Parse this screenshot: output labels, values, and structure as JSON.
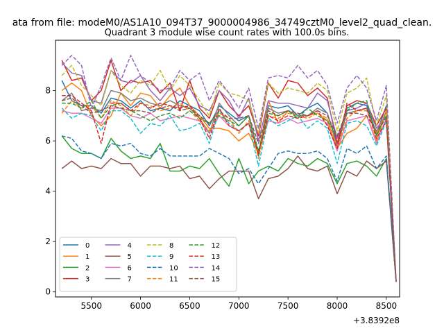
{
  "suptitle": "ata from file: modeM0/AS1A10_094T37_9000004986_34749cztM0_level2_quad_clean.",
  "chart_data": {
    "type": "line",
    "title": "Quadrant 3 module wise count rates with 100.0s bins.",
    "xlabel": "",
    "ylabel": "",
    "x_offset_label": "+3.8392e8",
    "xlim": [
      5135,
      8635
    ],
    "ylim": [
      -0.2,
      10.0
    ],
    "xticks": [
      5500,
      6000,
      6500,
      7000,
      7500,
      8000,
      8500
    ],
    "xtick_labels": [
      "5500",
      "6000",
      "6500",
      "7000",
      "7500",
      "8000",
      "8500"
    ],
    "yticks": [
      0,
      2,
      4,
      6,
      8
    ],
    "ytick_labels": [
      "0",
      "2",
      "4",
      "6",
      "8"
    ],
    "x": [
      5200,
      5300,
      5400,
      5500,
      5600,
      5700,
      5800,
      5900,
      6000,
      6100,
      6200,
      6300,
      6400,
      6500,
      6600,
      6700,
      6800,
      6900,
      7000,
      7100,
      7200,
      7300,
      7400,
      7500,
      7600,
      7700,
      7800,
      7900,
      8000,
      8100,
      8200,
      8300,
      8400,
      8500,
      8600
    ],
    "legend_location": "lower left",
    "series": [
      {
        "name": "0",
        "color": "#1f77b4",
        "dash": "solid",
        "values": [
          8.4,
          7.6,
          7.4,
          7.4,
          7.1,
          7.7,
          7.6,
          7.3,
          7.6,
          7.2,
          7.3,
          7.2,
          7.6,
          7.4,
          7.2,
          6.6,
          7.4,
          7.1,
          6.8,
          7.0,
          5.4,
          7.4,
          7.3,
          7.4,
          7.0,
          7.3,
          7.5,
          7.1,
          5.9,
          7.3,
          7.5,
          7.4,
          6.3,
          7.4,
          0.4
        ]
      },
      {
        "name": "1",
        "color": "#ff7f0e",
        "dash": "solid",
        "values": [
          8.0,
          8.3,
          8.0,
          7.0,
          6.6,
          7.0,
          7.9,
          7.4,
          7.9,
          7.8,
          7.3,
          7.8,
          8.1,
          7.4,
          7.0,
          6.5,
          6.5,
          6.4,
          6.0,
          6.3,
          5.5,
          7.6,
          6.7,
          7.2,
          7.0,
          7.0,
          7.1,
          6.8,
          5.7,
          6.3,
          6.5,
          7.0,
          6.0,
          7.2,
          0.4
        ]
      },
      {
        "name": "2",
        "color": "#2ca02c",
        "dash": "solid",
        "values": [
          6.2,
          5.7,
          5.5,
          5.5,
          5.3,
          6.1,
          5.6,
          5.3,
          5.4,
          5.3,
          5.9,
          4.8,
          4.8,
          5.0,
          4.9,
          5.3,
          4.7,
          4.2,
          5.3,
          4.3,
          4.8,
          5.0,
          4.8,
          5.3,
          5.1,
          5.0,
          5.3,
          5.1,
          4.3,
          5.1,
          5.2,
          5.0,
          4.6,
          5.3,
          0.4
        ]
      },
      {
        "name": "3",
        "color": "#d62728",
        "dash": "solid",
        "values": [
          9.2,
          8.4,
          8.5,
          7.6,
          8.0,
          9.2,
          8.0,
          8.4,
          8.3,
          8.4,
          7.9,
          8.3,
          7.2,
          8.4,
          7.3,
          6.9,
          8.0,
          7.4,
          7.0,
          7.4,
          6.2,
          8.3,
          7.7,
          8.4,
          8.3,
          7.8,
          8.1,
          7.7,
          5.9,
          7.4,
          7.6,
          7.5,
          6.6,
          7.3,
          0.4
        ]
      },
      {
        "name": "4",
        "color": "#9467bd",
        "dash": "solid",
        "values": [
          9.1,
          8.7,
          8.6,
          7.6,
          7.5,
          8.8,
          8.4,
          8.3,
          8.6,
          8.0,
          7.6,
          8.1,
          7.8,
          8.1,
          7.4,
          7.2,
          8.0,
          7.6,
          6.9,
          7.7,
          6.0,
          7.6,
          7.5,
          7.5,
          7.4,
          7.3,
          7.9,
          7.6,
          6.1,
          7.2,
          7.3,
          7.5,
          6.5,
          7.0,
          0.4
        ]
      },
      {
        "name": "5",
        "color": "#8c564b",
        "dash": "solid",
        "values": [
          4.9,
          5.2,
          4.9,
          5.0,
          4.9,
          5.3,
          5.1,
          5.1,
          4.6,
          5.0,
          5.0,
          4.9,
          5.0,
          4.5,
          4.6,
          4.1,
          4.5,
          4.8,
          4.8,
          4.8,
          3.7,
          4.5,
          4.6,
          4.9,
          5.4,
          4.9,
          4.8,
          5.0,
          3.9,
          4.8,
          4.6,
          5.2,
          4.9,
          5.2,
          0.4
        ]
      },
      {
        "name": "6",
        "color": "#e377c2",
        "dash": "solid",
        "values": [
          7.2,
          7.1,
          7.1,
          6.9,
          6.7,
          7.3,
          7.3,
          7.0,
          6.9,
          7.1,
          6.8,
          6.9,
          7.0,
          6.9,
          6.8,
          6.3,
          7.0,
          6.6,
          6.4,
          6.7,
          5.6,
          6.8,
          6.7,
          6.9,
          6.7,
          6.8,
          6.9,
          6.7,
          5.6,
          6.8,
          6.9,
          7.0,
          5.9,
          6.9,
          0.4
        ]
      },
      {
        "name": "7",
        "color": "#7f7f7f",
        "dash": "solid",
        "values": [
          7.6,
          7.9,
          7.2,
          7.3,
          7.2,
          8.0,
          7.9,
          7.6,
          7.7,
          7.5,
          7.4,
          7.6,
          7.4,
          7.3,
          6.9,
          6.3,
          7.5,
          7.0,
          6.6,
          7.0,
          5.5,
          7.3,
          7.1,
          7.2,
          7.0,
          7.0,
          7.3,
          7.1,
          5.8,
          7.1,
          7.2,
          7.3,
          6.2,
          7.2,
          0.4
        ]
      },
      {
        "name": "8",
        "color": "#bcbd22",
        "dash": "dashed",
        "values": [
          8.6,
          9.0,
          8.2,
          7.8,
          7.4,
          8.8,
          8.2,
          7.9,
          8.4,
          8.2,
          8.8,
          8.0,
          8.6,
          8.2,
          7.6,
          7.0,
          8.3,
          7.9,
          7.8,
          7.6,
          6.3,
          8.3,
          7.9,
          8.1,
          8.0,
          7.9,
          8.3,
          8.0,
          6.4,
          7.9,
          8.1,
          8.5,
          6.6,
          7.8,
          0.4
        ]
      },
      {
        "name": "9",
        "color": "#17becf",
        "dash": "dashed",
        "values": [
          7.3,
          6.9,
          7.1,
          7.0,
          6.4,
          7.2,
          7.2,
          6.9,
          6.3,
          6.7,
          6.6,
          7.0,
          6.4,
          6.5,
          6.7,
          5.9,
          7.2,
          6.7,
          6.4,
          6.7,
          5.0,
          6.9,
          6.6,
          6.8,
          7.0,
          6.5,
          6.8,
          6.5,
          5.1,
          6.7,
          6.8,
          6.6,
          5.8,
          6.8,
          0.4
        ]
      },
      {
        "name": "10",
        "color": "#1f77b4",
        "dash": "dashed",
        "values": [
          6.2,
          6.1,
          5.6,
          5.5,
          5.3,
          5.9,
          5.8,
          5.9,
          5.5,
          5.4,
          5.7,
          5.4,
          5.4,
          5.4,
          5.4,
          5.7,
          5.5,
          5.3,
          4.7,
          4.9,
          4.3,
          4.9,
          5.5,
          5.6,
          5.5,
          5.5,
          5.6,
          5.3,
          4.4,
          5.7,
          5.5,
          5.8,
          4.9,
          5.4,
          0.4
        ]
      },
      {
        "name": "11",
        "color": "#ff7f0e",
        "dash": "dashed",
        "values": [
          7.1,
          7.6,
          7.3,
          7.4,
          6.9,
          7.6,
          7.4,
          7.0,
          7.5,
          7.4,
          7.2,
          7.3,
          7.5,
          7.2,
          6.8,
          6.4,
          7.1,
          6.9,
          6.3,
          6.8,
          5.3,
          7.0,
          6.9,
          7.1,
          7.0,
          6.9,
          7.1,
          6.9,
          5.7,
          6.9,
          7.2,
          7.2,
          6.3,
          7.2,
          0.4
        ]
      },
      {
        "name": "12",
        "color": "#2ca02c",
        "dash": "dashed",
        "values": [
          7.5,
          7.5,
          7.3,
          7.6,
          6.9,
          7.4,
          7.5,
          7.2,
          7.0,
          6.8,
          7.0,
          7.1,
          6.9,
          7.2,
          6.9,
          6.7,
          7.0,
          6.8,
          6.6,
          7.0,
          5.6,
          7.1,
          7.0,
          7.2,
          6.9,
          7.3,
          7.0,
          6.8,
          6.2,
          7.2,
          7.5,
          7.6,
          6.2,
          7.0,
          0.4
        ]
      },
      {
        "name": "13",
        "color": "#d62728",
        "dash": "dashed",
        "values": [
          7.8,
          7.8,
          7.5,
          7.2,
          5.9,
          7.5,
          7.5,
          7.2,
          7.5,
          7.3,
          7.5,
          7.4,
          7.3,
          7.4,
          6.9,
          6.1,
          7.3,
          6.6,
          6.4,
          6.7,
          5.5,
          7.0,
          6.8,
          7.0,
          6.9,
          7.0,
          7.2,
          6.6,
          5.7,
          7.5,
          7.2,
          7.3,
          6.1,
          6.8,
          0.4
        ]
      },
      {
        "name": "14",
        "color": "#9467bd",
        "dash": "dashed",
        "values": [
          9.0,
          9.4,
          9.0,
          7.3,
          8.2,
          9.3,
          8.4,
          9.4,
          8.6,
          8.3,
          8.0,
          8.1,
          8.8,
          8.4,
          8.7,
          7.6,
          8.4,
          7.9,
          7.3,
          8.1,
          6.5,
          8.5,
          8.6,
          8.5,
          9.0,
          8.5,
          8.8,
          8.2,
          6.7,
          8.1,
          8.6,
          8.1,
          6.8,
          8.2,
          0.4
        ]
      },
      {
        "name": "15",
        "color": "#8c564b",
        "dash": "dashed",
        "values": [
          7.6,
          7.7,
          7.4,
          7.1,
          7.2,
          7.4,
          7.3,
          7.2,
          7.2,
          7.1,
          7.3,
          7.4,
          7.2,
          7.3,
          7.0,
          6.7,
          7.2,
          6.9,
          6.9,
          7.0,
          5.9,
          7.2,
          7.0,
          7.2,
          7.1,
          7.0,
          7.2,
          7.0,
          6.2,
          7.1,
          7.1,
          7.0,
          6.4,
          6.9,
          0.4
        ]
      }
    ]
  }
}
